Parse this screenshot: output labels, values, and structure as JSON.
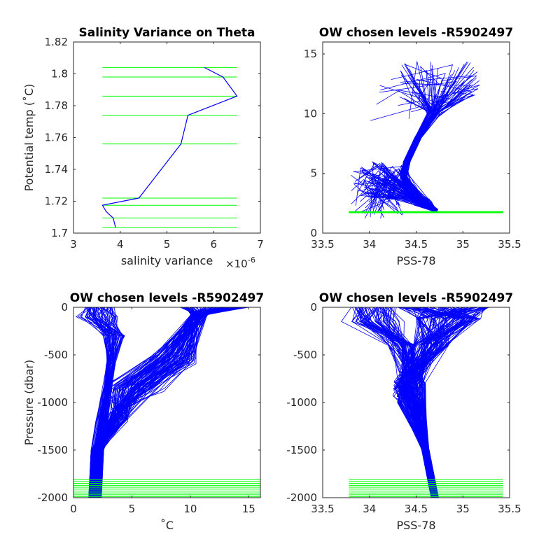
{
  "colors": {
    "profile": "#0000ff",
    "level": "#00ff00",
    "axis": "#262626"
  },
  "chart_data": [
    {
      "type": "line",
      "title": "Salinity Variance on Theta",
      "xlabel": "salinity variance",
      "xexponent_label": "×10",
      "xexponent_value": "-6",
      "ylabel": "Potential temp (˚C)",
      "xlim": [
        3,
        7
      ],
      "ylim": [
        1.7,
        1.82
      ],
      "xticks": [
        "3",
        "4",
        "5",
        "6",
        "7"
      ],
      "yticks": [
        "1.7",
        "1.72",
        "1.74",
        "1.76",
        "1.78",
        "1.8",
        "1.82"
      ],
      "series": [
        {
          "color": "#0000ff",
          "x": [
            3.9,
            3.85,
            3.7,
            3.62,
            4.4,
            5.3,
            5.45,
            6.5,
            6.2,
            5.8
          ],
          "y": [
            1.7035,
            1.7095,
            1.7135,
            1.7175,
            1.722,
            1.756,
            1.774,
            1.786,
            1.798,
            1.804
          ]
        }
      ],
      "levels": {
        "y": [
          1.7035,
          1.7095,
          1.7175,
          1.722,
          1.756,
          1.774,
          1.786,
          1.798,
          1.804
        ],
        "xrange": [
          3.62,
          6.5
        ]
      }
    },
    {
      "type": "line",
      "title": "OW chosen levels -R5902497",
      "xlabel": "PSS-78",
      "ylabel": "",
      "xlim": [
        33.5,
        35.5
      ],
      "ylim": [
        0,
        16
      ],
      "xticks": [
        "33.5",
        "34",
        "34.5",
        "35",
        "35.5"
      ],
      "yticks": [
        "0",
        "5",
        "10",
        "15"
      ],
      "profile_count": 170,
      "levels": {
        "y": [
          1.7,
          1.72,
          1.74,
          1.76,
          1.78,
          1.8
        ],
        "xrange": [
          33.78,
          35.43
        ]
      }
    },
    {
      "type": "line",
      "title": "OW chosen levels -R5902497",
      "xlabel": "˚C",
      "ylabel": "Pressure (dbar)",
      "xlim": [
        0,
        16
      ],
      "ylim": [
        -2000,
        0
      ],
      "xticks": [
        "0",
        "5",
        "10",
        "15"
      ],
      "yticks": [
        "-2000",
        "-1500",
        "-1000",
        "-500",
        "0"
      ],
      "profile_count": 170,
      "levels": {
        "y": [
          -1810,
          -1830,
          -1850,
          -1870,
          -1890,
          -1910,
          -1930,
          -1950,
          -1970,
          -1990
        ],
        "xrange": [
          0,
          16
        ]
      }
    },
    {
      "type": "line",
      "title": "OW chosen levels -R5902497",
      "xlabel": "PSS-78",
      "ylabel": "",
      "xlim": [
        33.5,
        35.5
      ],
      "ylim": [
        -2000,
        0
      ],
      "xticks": [
        "33.5",
        "34",
        "34.5",
        "35",
        "35.5"
      ],
      "yticks": [
        "-2000",
        "-1500",
        "-1000",
        "-500",
        "0"
      ],
      "profile_count": 170,
      "levels": {
        "y": [
          -1810,
          -1830,
          -1850,
          -1870,
          -1890,
          -1910,
          -1930,
          -1950,
          -1970,
          -1990
        ],
        "xrange": [
          33.78,
          35.43
        ]
      }
    }
  ]
}
